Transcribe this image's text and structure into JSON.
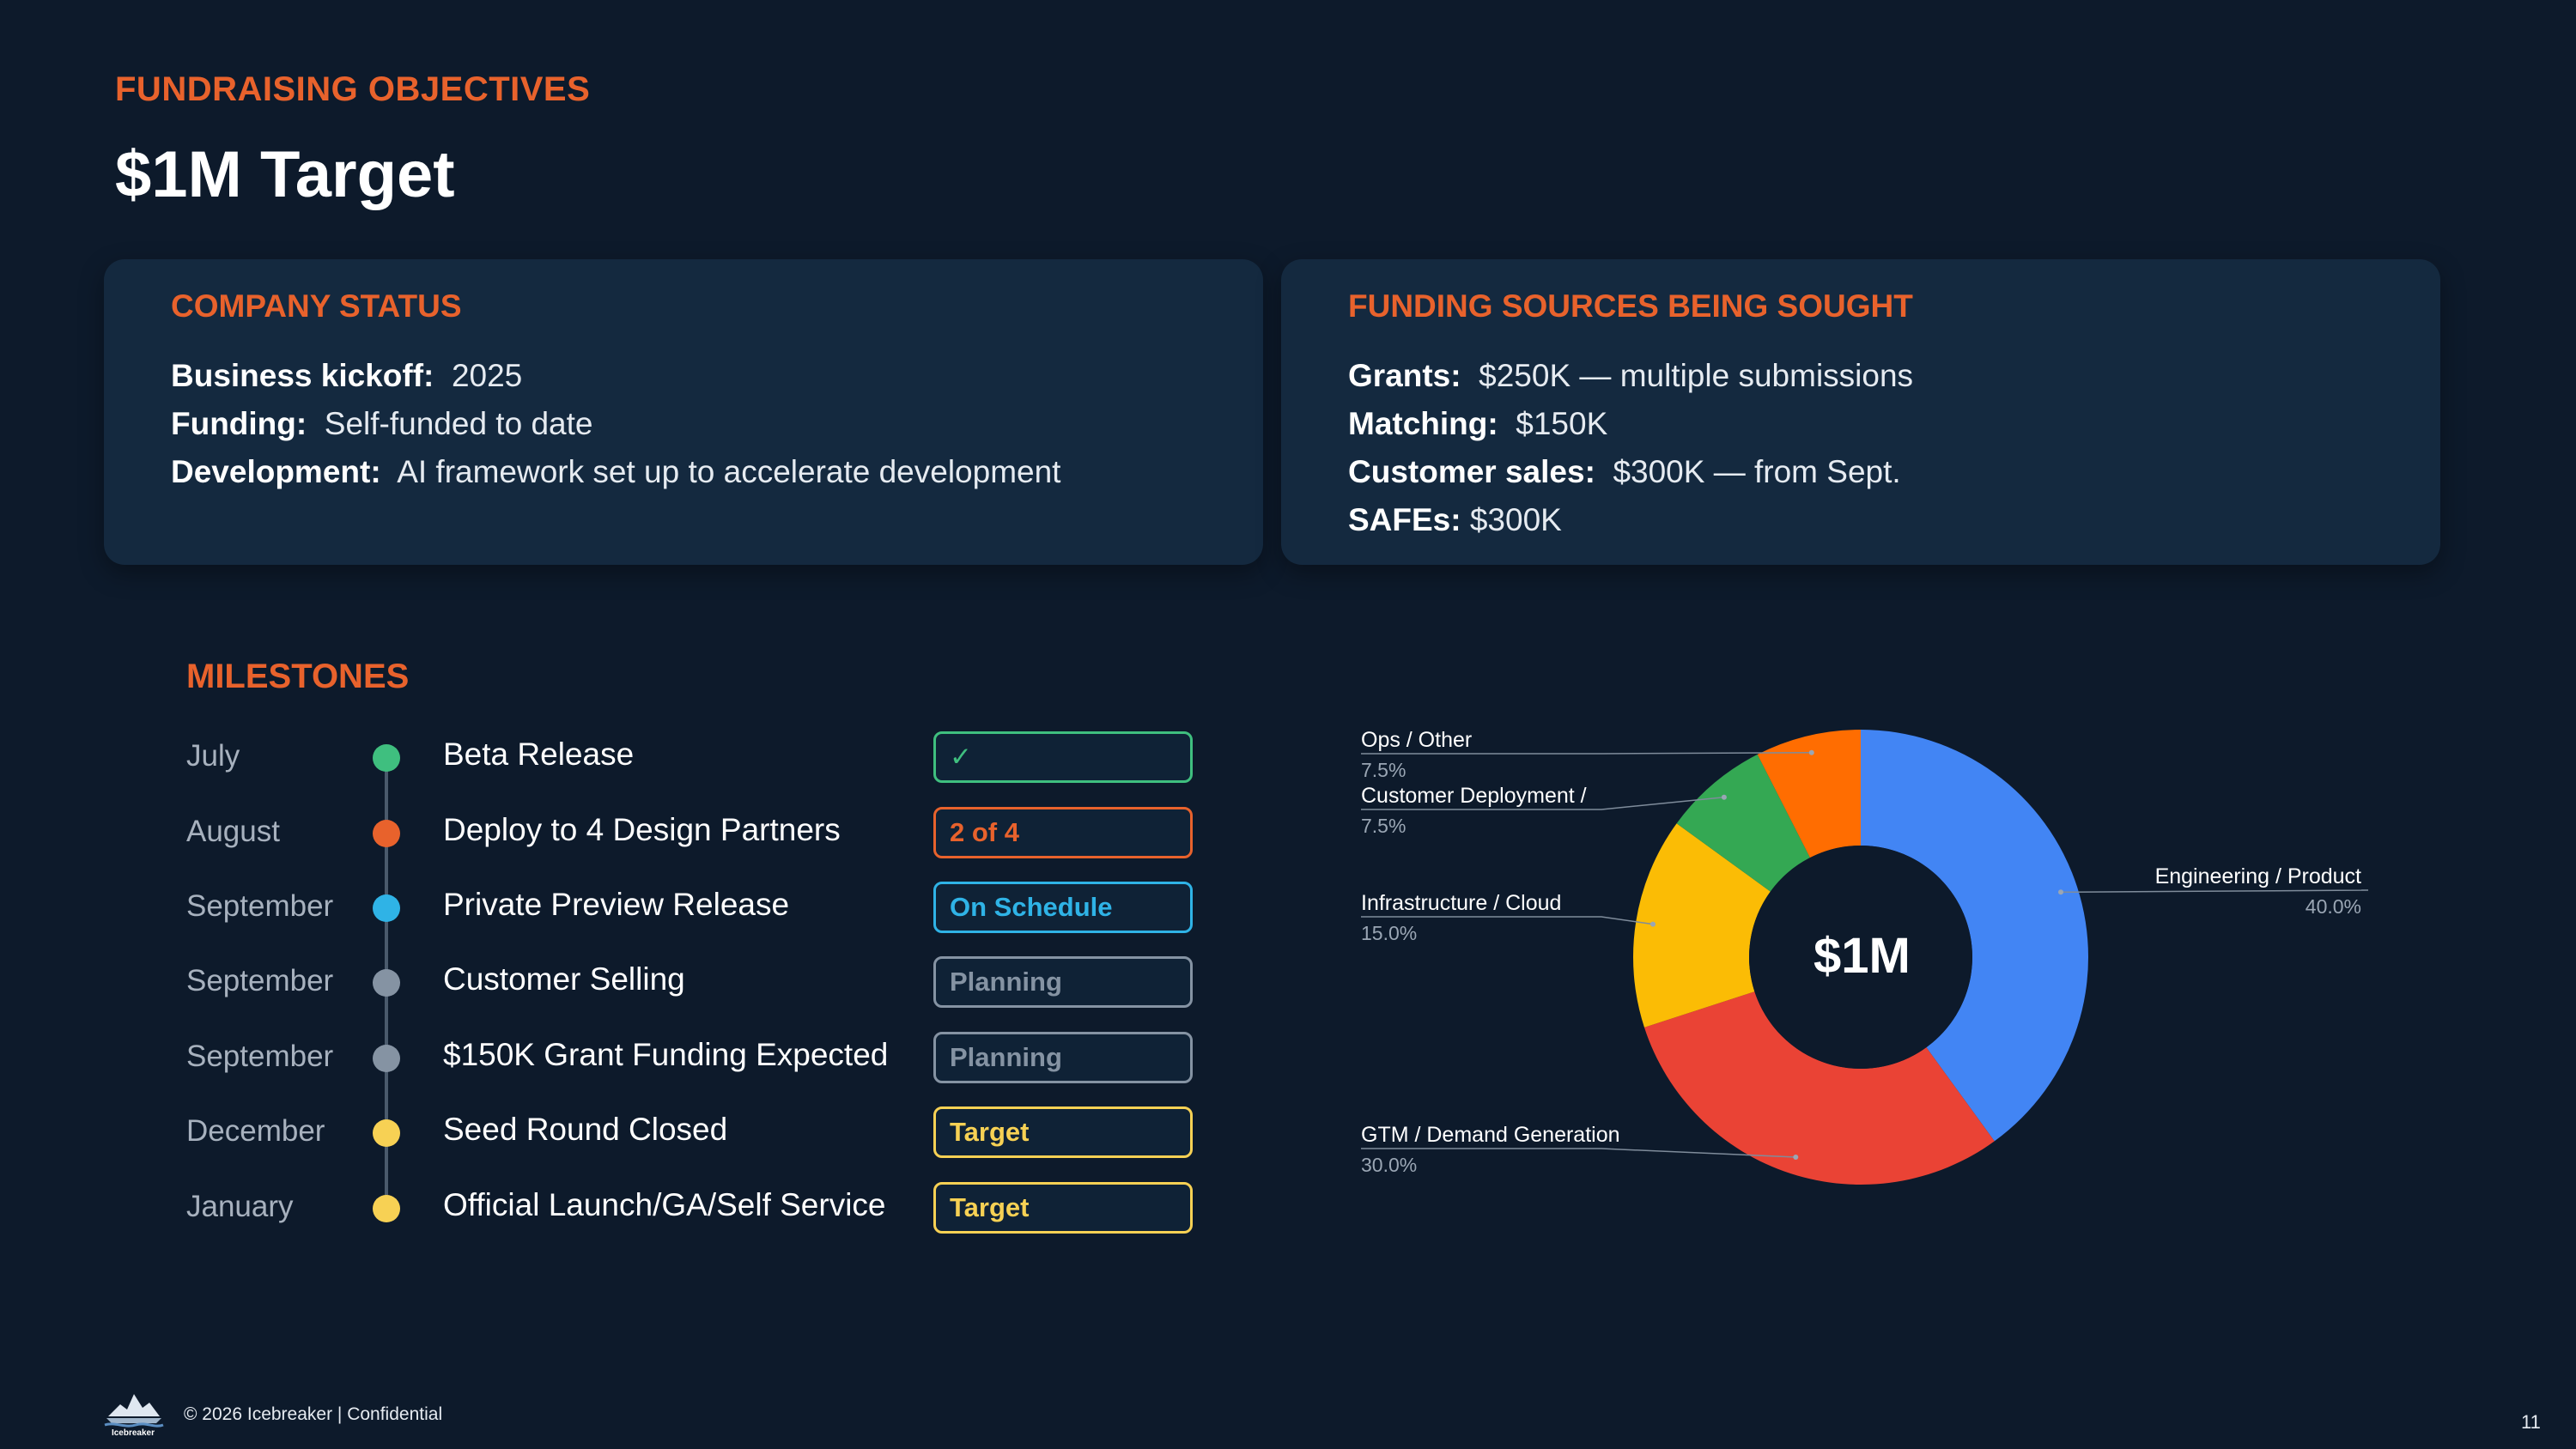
{
  "header": {
    "eyebrow": "FUNDRAISING OBJECTIVES",
    "title": "$1M Target"
  },
  "company_status": {
    "heading": "COMPANY STATUS",
    "lines": [
      {
        "key": "Business kickoff:",
        "value": "2025"
      },
      {
        "key": "Funding:",
        "value": "Self-funded to date"
      },
      {
        "key": "Development:",
        "value": "AI framework set up to accelerate development"
      }
    ]
  },
  "funding_sources": {
    "heading": "FUNDING SOURCES BEING SOUGHT",
    "lines": [
      {
        "key": "Grants:",
        "value": "$250K — multiple submissions"
      },
      {
        "key": "Matching:",
        "value": "$150K"
      },
      {
        "key": "Customer sales:",
        "value": "$300K — from Sept."
      },
      {
        "key": "SAFEs:",
        "value": "$300K"
      }
    ]
  },
  "milestones": {
    "heading": "MILESTONES",
    "items": [
      {
        "month": "July",
        "label": "Beta Release",
        "badge": "✓",
        "color": "#3fbf7f"
      },
      {
        "month": "August",
        "label": "Deploy to 4 Design Partners",
        "badge": "2 of 4",
        "color": "#e8622c"
      },
      {
        "month": "September",
        "label": "Private Preview Release",
        "badge": "On Schedule",
        "color": "#2fb3e6"
      },
      {
        "month": "September",
        "label": "Customer Selling",
        "badge": "Planning",
        "color": "#8593a3"
      },
      {
        "month": "September",
        "label": "$150K Grant Funding Expected",
        "badge": "Planning",
        "color": "#8593a3"
      },
      {
        "month": "December",
        "label": "Seed Round Closed",
        "badge": "Target",
        "color": "#f7d154"
      },
      {
        "month": "January",
        "label": "Official Launch/GA/Self Service",
        "badge": "Target",
        "color": "#f7d154"
      }
    ]
  },
  "chart_data": {
    "type": "pie",
    "center_label": "$1M",
    "slices": [
      {
        "label": "Engineering / Product",
        "value": 40.0,
        "pct": "40.0%",
        "color": "#4285f4"
      },
      {
        "label": "GTM / Demand Generation",
        "value": 30.0,
        "pct": "30.0%",
        "color": "#ea4335"
      },
      {
        "label": "Infrastructure / Cloud",
        "value": 15.0,
        "pct": "15.0%",
        "color": "#fbbc05"
      },
      {
        "label": "Customer Deployment /",
        "value": 7.5,
        "pct": "7.5%",
        "color": "#34a853"
      },
      {
        "label": "Ops / Other",
        "value": 7.5,
        "pct": "7.5%",
        "color": "#ff6d01"
      }
    ]
  },
  "footer": {
    "logo_text": "Icebreaker",
    "text": "© 2026 Icebreaker |  Confidential",
    "page_number": "11"
  }
}
